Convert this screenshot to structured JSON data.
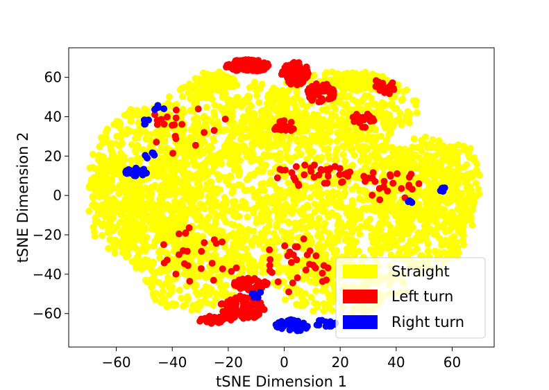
{
  "chart_data": {
    "type": "scatter",
    "title": "",
    "xlabel": "tSNE Dimension 1",
    "ylabel": "tSNE Dimension 2",
    "xlim": [
      -77,
      75
    ],
    "ylim": [
      -77,
      75
    ],
    "xticks": [
      -60,
      -40,
      -20,
      0,
      20,
      40,
      60
    ],
    "yticks": [
      -60,
      -40,
      -20,
      0,
      20,
      40,
      60
    ],
    "xtick_labels": [
      "−60",
      "−40",
      "−20",
      "0",
      "20",
      "40",
      "60"
    ],
    "ytick_labels": [
      "−60",
      "−40",
      "−20",
      "0",
      "20",
      "40",
      "60"
    ],
    "grid": false,
    "legend_position": "lower-right",
    "series": [
      {
        "name": "Straight",
        "color": "#ffff00",
        "clusters": [
          {
            "cx": 0,
            "cy": 0,
            "rx": 52,
            "ry": 40,
            "n": 1400
          },
          {
            "cx": -50,
            "cy": 10,
            "rx": 20,
            "ry": 35,
            "n": 400
          },
          {
            "cx": -60,
            "cy": -5,
            "rx": 10,
            "ry": 25,
            "n": 160
          },
          {
            "cx": 50,
            "cy": -5,
            "rx": 18,
            "ry": 35,
            "n": 380
          },
          {
            "cx": 60,
            "cy": 5,
            "rx": 10,
            "ry": 25,
            "n": 160
          },
          {
            "cx": -20,
            "cy": 40,
            "rx": 25,
            "ry": 20,
            "n": 300
          },
          {
            "cx": 20,
            "cy": 45,
            "rx": 28,
            "ry": 18,
            "n": 300
          },
          {
            "cx": -30,
            "cy": -45,
            "rx": 20,
            "ry": 15,
            "n": 180
          },
          {
            "cx": 20,
            "cy": -45,
            "rx": 25,
            "ry": 15,
            "n": 200
          },
          {
            "cx": -25,
            "cy": 58,
            "rx": 8,
            "ry": 5,
            "n": 60
          },
          {
            "cx": 25,
            "cy": 58,
            "rx": 12,
            "ry": 5,
            "n": 80
          },
          {
            "cx": -45,
            "cy": -25,
            "rx": 15,
            "ry": 15,
            "n": 150
          }
        ]
      },
      {
        "name": "Left turn",
        "color": "#ff0000",
        "clusters": [
          {
            "cx": -13,
            "cy": 66,
            "rx": 8,
            "ry": 3,
            "n": 90
          },
          {
            "cx": 4,
            "cy": 62,
            "rx": 5,
            "ry": 6,
            "n": 80
          },
          {
            "cx": 13,
            "cy": 52,
            "rx": 5,
            "ry": 5,
            "n": 50
          },
          {
            "cx": -12,
            "cy": -45,
            "rx": 6,
            "ry": 3,
            "n": 50
          },
          {
            "cx": -15,
            "cy": -57,
            "rx": 8,
            "ry": 6,
            "n": 90
          },
          {
            "cx": -25,
            "cy": -63,
            "rx": 6,
            "ry": 2,
            "n": 40
          },
          {
            "cx": 0,
            "cy": 35,
            "rx": 4,
            "ry": 3,
            "n": 20
          },
          {
            "cx": 35,
            "cy": 55,
            "rx": 5,
            "ry": 4,
            "n": 20
          },
          {
            "cx": 28,
            "cy": 38,
            "rx": 4,
            "ry": 4,
            "n": 20
          },
          {
            "cx": 10,
            "cy": 10,
            "rx": 15,
            "ry": 6,
            "n": 35
          },
          {
            "cx": 38,
            "cy": 5,
            "rx": 12,
            "ry": 8,
            "n": 25
          },
          {
            "cx": 5,
            "cy": -35,
            "rx": 12,
            "ry": 15,
            "n": 30
          },
          {
            "cx": -30,
            "cy": -30,
            "rx": 15,
            "ry": 15,
            "n": 25
          },
          {
            "cx": -35,
            "cy": 35,
            "rx": 15,
            "ry": 15,
            "n": 20
          }
        ]
      },
      {
        "name": "Right turn",
        "color": "#0000ff",
        "clusters": [
          {
            "cx": -53,
            "cy": 12,
            "rx": 4,
            "ry": 2,
            "n": 25
          },
          {
            "cx": -48,
            "cy": 20,
            "rx": 2,
            "ry": 2,
            "n": 5
          },
          {
            "cx": -45,
            "cy": 44,
            "rx": 2,
            "ry": 2,
            "n": 5
          },
          {
            "cx": -50,
            "cy": 38,
            "rx": 2,
            "ry": 2,
            "n": 5
          },
          {
            "cx": 3,
            "cy": -66,
            "rx": 6,
            "ry": 3,
            "n": 40
          },
          {
            "cx": 15,
            "cy": -65,
            "rx": 4,
            "ry": 2,
            "n": 15
          },
          {
            "cx": 45,
            "cy": -3,
            "rx": 1,
            "ry": 1,
            "n": 4
          },
          {
            "cx": 57,
            "cy": 3,
            "rx": 1.5,
            "ry": 1,
            "n": 5
          },
          {
            "cx": -10,
            "cy": -50,
            "rx": 2,
            "ry": 2,
            "n": 5
          }
        ]
      }
    ]
  }
}
